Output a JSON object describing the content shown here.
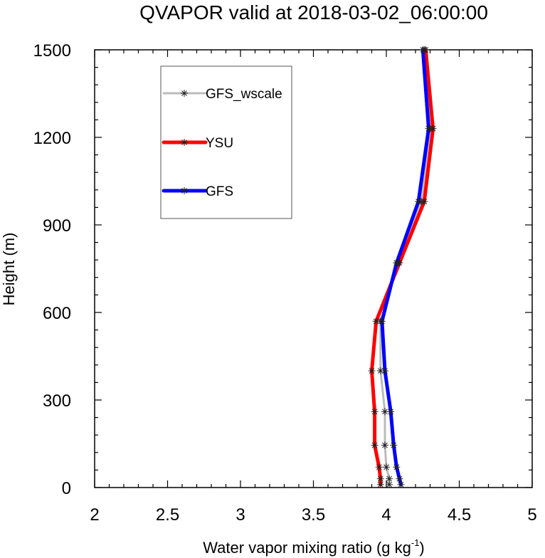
{
  "chart_data": {
    "type": "line",
    "title": "QVAPOR valid at 2018-03-02_06:00:00",
    "xlabel": "Water vapor mixing ratio (g kg",
    "xlabel_sup": "-1",
    "xlabel_end": ")",
    "ylabel": "Height (m)",
    "xlim": [
      2,
      5
    ],
    "ylim": [
      0,
      1500
    ],
    "x_ticks": [
      2,
      2.5,
      3,
      3.5,
      4,
      4.5,
      5
    ],
    "x_tick_labels": [
      "2",
      "2.5",
      "3",
      "3.5",
      "4",
      "4.5",
      "5"
    ],
    "y_ticks": [
      0,
      300,
      600,
      900,
      1200,
      1500
    ],
    "y_tick_labels": [
      "0",
      "300",
      "600",
      "900",
      "1200",
      "1500"
    ],
    "grid": false,
    "legend_position": "top-left",
    "series": [
      {
        "name": "GFS_wscale",
        "color": "#bbbbbb",
        "line_width": 3,
        "points": [
          {
            "x": 4.02,
            "y": 10
          },
          {
            "x": 4.02,
            "y": 30
          },
          {
            "x": 4.0,
            "y": 70
          },
          {
            "x": 3.99,
            "y": 145
          },
          {
            "x": 3.99,
            "y": 260
          },
          {
            "x": 3.96,
            "y": 400
          },
          {
            "x": 3.96,
            "y": 570
          },
          {
            "x": 4.08,
            "y": 770
          },
          {
            "x": 4.24,
            "y": 980
          },
          {
            "x": 4.3,
            "y": 1230
          },
          {
            "x": 4.26,
            "y": 1500
          }
        ]
      },
      {
        "name": "YSU",
        "color": "#ff0000",
        "line_width": 5,
        "points": [
          {
            "x": 3.96,
            "y": 10
          },
          {
            "x": 3.96,
            "y": 30
          },
          {
            "x": 3.95,
            "y": 70
          },
          {
            "x": 3.92,
            "y": 145
          },
          {
            "x": 3.92,
            "y": 260
          },
          {
            "x": 3.9,
            "y": 400
          },
          {
            "x": 3.93,
            "y": 570
          },
          {
            "x": 4.09,
            "y": 770
          },
          {
            "x": 4.26,
            "y": 980
          },
          {
            "x": 4.32,
            "y": 1230
          },
          {
            "x": 4.27,
            "y": 1500
          }
        ]
      },
      {
        "name": "GFS",
        "color": "#0000ff",
        "line_width": 5,
        "points": [
          {
            "x": 4.1,
            "y": 10
          },
          {
            "x": 4.09,
            "y": 30
          },
          {
            "x": 4.07,
            "y": 70
          },
          {
            "x": 4.05,
            "y": 145
          },
          {
            "x": 4.03,
            "y": 260
          },
          {
            "x": 3.99,
            "y": 400
          },
          {
            "x": 3.97,
            "y": 570
          },
          {
            "x": 4.07,
            "y": 770
          },
          {
            "x": 4.22,
            "y": 980
          },
          {
            "x": 4.29,
            "y": 1230
          },
          {
            "x": 4.25,
            "y": 1500
          }
        ]
      }
    ],
    "legend_entries": [
      "GFS_wscale",
      "YSU",
      "GFS"
    ]
  }
}
